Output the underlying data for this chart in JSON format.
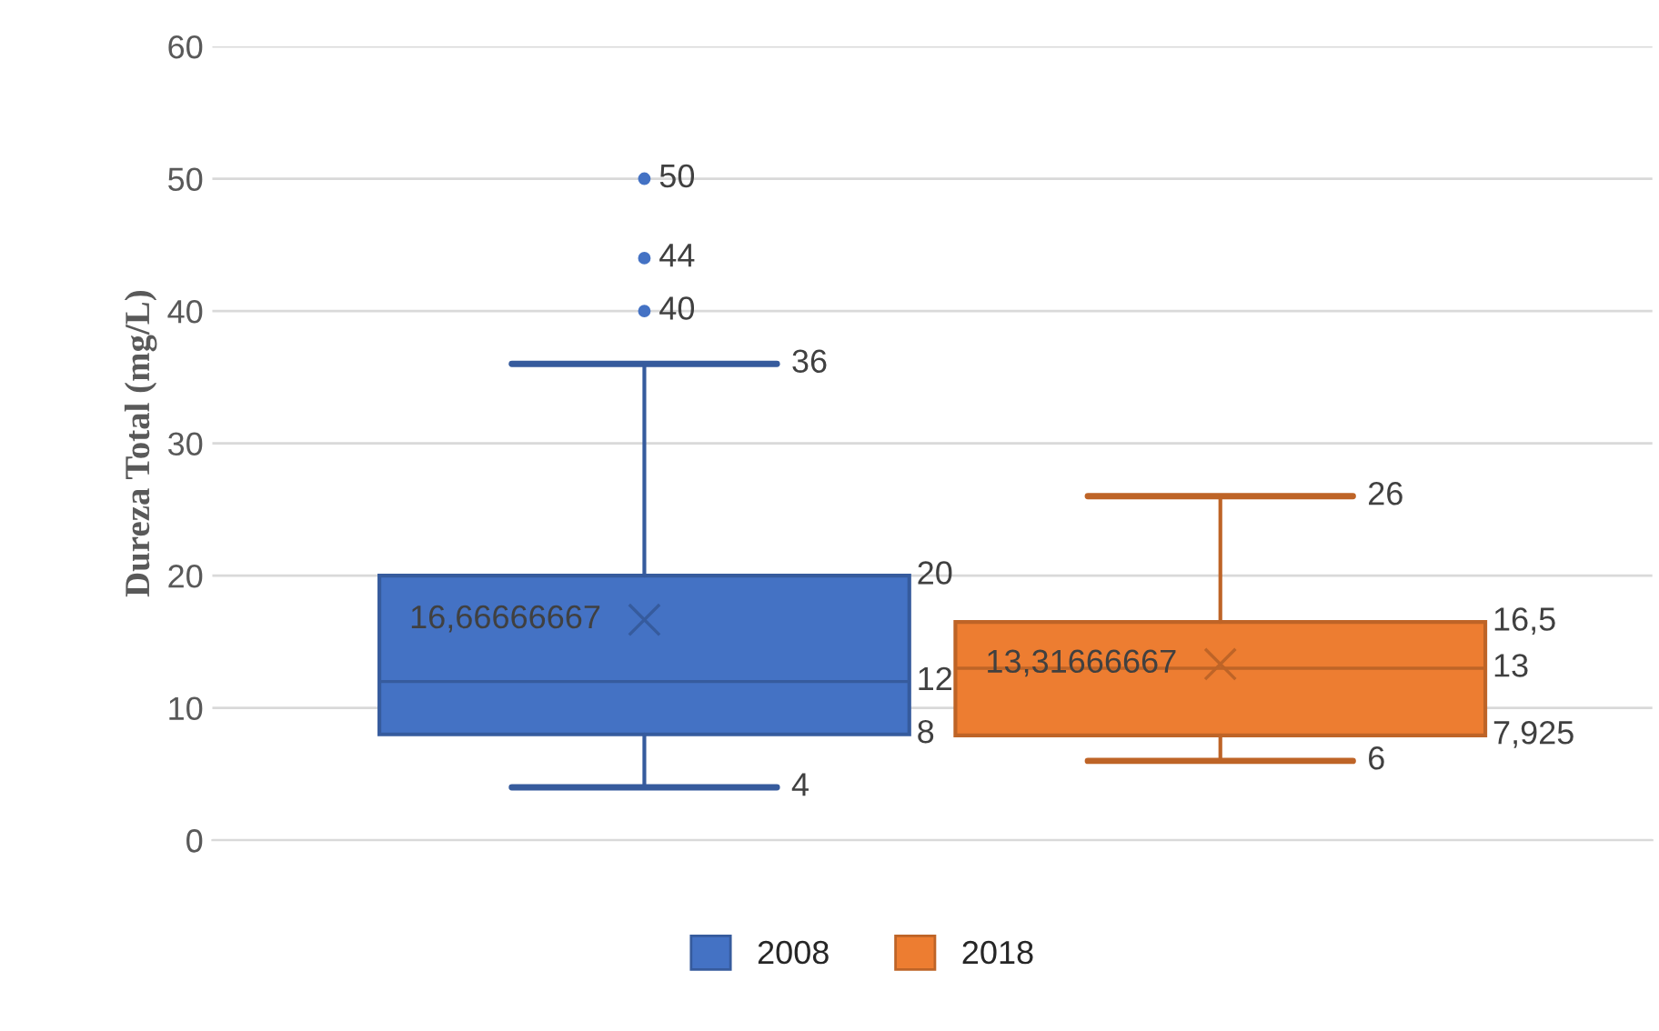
{
  "chart_data": {
    "type": "box",
    "ylabel": "Dureza Total (mg/L)",
    "categories": [
      null
    ],
    "series": [
      {
        "name": "2008",
        "color": "#4472c4",
        "boxes": [
          {
            "low": 4,
            "q1": 8,
            "median": 12,
            "q3": 20,
            "high": 36,
            "mean": 16.66666667,
            "outliers": [
              50,
              44,
              40
            ]
          }
        ]
      },
      {
        "name": "2018",
        "color": "#ed7d31",
        "boxes": [
          {
            "low": 6,
            "q1": 7.925,
            "median": 13,
            "q3": 16.5,
            "high": 26,
            "mean": 13.31666667
          }
        ]
      }
    ],
    "annotations": [
      "50",
      "44",
      "40",
      "36",
      "20",
      "16,66666667",
      "12",
      "8",
      "4",
      "26",
      "16,5",
      "13,31666667",
      "13",
      "7,925",
      "6"
    ],
    "ylim": [
      0,
      60
    ],
    "yticks": [
      0,
      10,
      20,
      30,
      40,
      50,
      60
    ],
    "grid": "y",
    "legend": "bottom"
  }
}
